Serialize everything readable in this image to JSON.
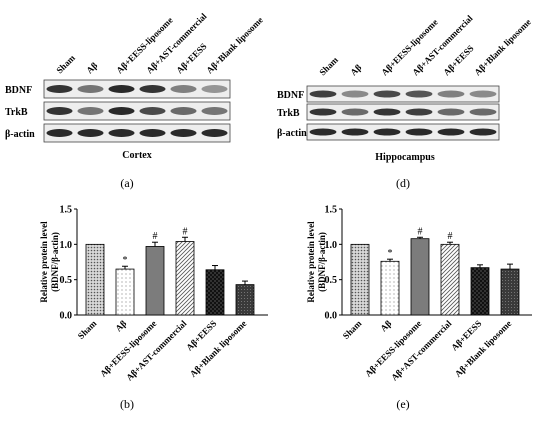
{
  "blots": [
    {
      "panel_label": "(a)",
      "tissue_label": "Cortex",
      "lane_labels": [
        "Sham",
        "Aβ",
        "Aβ+EESS-liposome",
        "Aβ+AST-commercial",
        "Aβ+EESS",
        "Aβ+Blank liposome"
      ],
      "rows": [
        {
          "label": "BDNF",
          "band_intensity": [
            0.85,
            0.55,
            0.9,
            0.85,
            0.5,
            0.4
          ]
        },
        {
          "label": "TrkB",
          "band_intensity": [
            0.85,
            0.55,
            0.9,
            0.75,
            0.6,
            0.55
          ]
        },
        {
          "label": "β-actin",
          "band_intensity": [
            0.9,
            0.9,
            0.9,
            0.9,
            0.9,
            0.9
          ]
        }
      ]
    },
    {
      "panel_label": "(d)",
      "tissue_label": "Hippocampus",
      "lane_labels": [
        "Sham",
        "Aβ",
        "Aβ+EESS-liposome",
        "Aβ+AST-commercial",
        "Aβ+EESS",
        "Aβ+Blank liposome"
      ],
      "rows": [
        {
          "label": "BDNF",
          "band_intensity": [
            0.8,
            0.45,
            0.75,
            0.7,
            0.5,
            0.45
          ]
        },
        {
          "label": "TrkB",
          "band_intensity": [
            0.85,
            0.6,
            0.85,
            0.8,
            0.6,
            0.6
          ]
        },
        {
          "label": "β-actin",
          "band_intensity": [
            0.9,
            0.9,
            0.9,
            0.9,
            0.9,
            0.9
          ]
        }
      ]
    }
  ],
  "chart_data": [
    {
      "type": "bar",
      "panel_label": "(b)",
      "categories": [
        "Sham",
        "Aβ",
        "Aβ+EESS-liposome",
        "Aβ+AST-commercial",
        "Aβ+EESS",
        "Aβ+Blank liposome"
      ],
      "values": [
        1.0,
        0.65,
        0.97,
        1.04,
        0.64,
        0.43
      ],
      "errors": [
        0,
        0.04,
        0.06,
        0.06,
        0.06,
        0.05
      ],
      "significance": [
        "",
        "*",
        "#",
        "#",
        "",
        ""
      ],
      "ylabel_line1": "Relative protein level",
      "ylabel_line2": "(BDNF/β-actin)",
      "ylim": [
        0,
        1.5
      ],
      "yticks": [
        "0.0",
        "0.5",
        "1.0",
        "1.5"
      ],
      "bar_fills": [
        "dots-dense",
        "dots-sparse",
        "gray",
        "hatch",
        "checker",
        "dark-sparse"
      ]
    },
    {
      "type": "bar",
      "panel_label": "(e)",
      "categories": [
        "Sham",
        "Aβ",
        "Aβ+EESS-liposome",
        "Aβ+AST-commercial",
        "Aβ+EESS",
        "Aβ+Blank liposome"
      ],
      "values": [
        1.0,
        0.76,
        1.08,
        1.0,
        0.67,
        0.65
      ],
      "errors": [
        0,
        0.03,
        0.02,
        0.03,
        0.04,
        0.07
      ],
      "significance": [
        "",
        "*",
        "#",
        "#",
        "",
        ""
      ],
      "ylabel_line1": "Relative protein level",
      "ylabel_line2": "(BDNF/β-actin)",
      "ylim": [
        0,
        1.5
      ],
      "yticks": [
        "0.0",
        "0.5",
        "1.0",
        "1.5"
      ],
      "bar_fills": [
        "dots-dense",
        "dots-sparse",
        "gray",
        "hatch",
        "checker",
        "dark-sparse"
      ]
    }
  ]
}
